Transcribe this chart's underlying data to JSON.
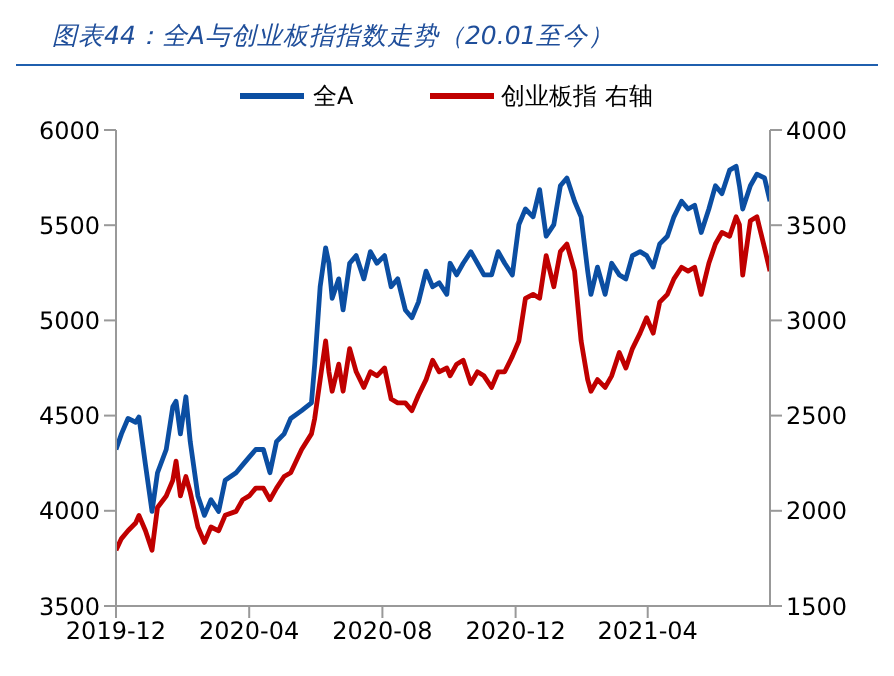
{
  "chart_data": {
    "type": "line",
    "title": "图表44：全A与创业板指指数走势（20.01至今）",
    "legend": "top",
    "line_style": "solid",
    "marker": "none",
    "x": [
      "2019-12-01",
      "2019-12-06",
      "2019-12-12",
      "2019-12-19",
      "2019-12-22",
      "2019-12-28",
      "2020-01-03",
      "2020-01-08",
      "2020-01-16",
      "2020-01-22",
      "2020-01-25",
      "2020-01-29",
      "2020-02-03",
      "2020-02-07",
      "2020-02-14",
      "2020-02-20",
      "2020-02-26",
      "2020-03-04",
      "2020-03-10",
      "2020-03-20",
      "2020-03-26",
      "2020-04-01",
      "2020-04-07",
      "2020-04-14",
      "2020-04-20",
      "2020-04-26",
      "2020-05-03",
      "2020-05-09",
      "2020-05-19",
      "2020-05-28",
      "2020-05-31",
      "2020-06-05",
      "2020-06-10",
      "2020-06-13",
      "2020-06-16",
      "2020-06-22",
      "2020-06-26",
      "2020-07-02",
      "2020-07-08",
      "2020-07-15",
      "2020-07-21",
      "2020-07-27",
      "2020-08-03",
      "2020-08-09",
      "2020-08-15",
      "2020-08-22",
      "2020-08-28",
      "2020-09-03",
      "2020-09-10",
      "2020-09-16",
      "2020-09-22",
      "2020-09-29",
      "2020-10-02",
      "2020-10-08",
      "2020-10-14",
      "2020-10-21",
      "2020-10-27",
      "2020-11-02",
      "2020-11-09",
      "2020-11-15",
      "2020-11-21",
      "2020-11-28",
      "2020-12-04",
      "2020-12-10",
      "2020-12-17",
      "2020-12-23",
      "2020-12-29",
      "2021-01-05",
      "2021-01-11",
      "2021-01-17",
      "2021-01-24",
      "2021-01-30",
      "2021-02-05",
      "2021-02-08",
      "2021-02-14",
      "2021-02-21",
      "2021-02-27",
      "2021-03-06",
      "2021-03-12",
      "2021-03-18",
      "2021-03-25",
      "2021-03-31",
      "2021-04-06",
      "2021-04-12",
      "2021-04-19",
      "2021-04-25",
      "2021-05-02",
      "2021-05-08",
      "2021-05-14",
      "2021-05-20",
      "2021-05-27",
      "2021-06-02",
      "2021-06-08",
      "2021-06-15",
      "2021-06-21",
      "2021-06-24",
      "2021-06-27",
      "2021-07-04",
      "2021-07-10",
      "2021-07-17",
      "2021-07-22"
    ],
    "xlim": [
      "2019-12-01",
      "2021-07-22"
    ],
    "xticks": [
      "2019-12",
      "2020-04",
      "2020-08",
      "2020-12",
      "2021-04"
    ],
    "ylim": [
      3500,
      6000
    ],
    "yticks": [
      3500,
      4000,
      4500,
      5000,
      5500,
      6000
    ],
    "y2lim": [
      1500,
      4000
    ],
    "y2ticks": [
      1500,
      2000,
      2500,
      3000,
      3500,
      4000
    ],
    "series": [
      {
        "name": "全A",
        "color": "#0b4ea2",
        "values": [
          4322,
          4404,
          4485,
          4465,
          4493,
          4241,
          3997,
          4200,
          4322,
          4546,
          4575,
          4404,
          4599,
          4363,
          4078,
          3976,
          4058,
          3997,
          4160,
          4200,
          4241,
          4282,
          4322,
          4322,
          4200,
          4363,
          4404,
          4485,
          4526,
          4567,
          4770,
          5177,
          5381,
          5300,
          5116,
          5218,
          5055,
          5300,
          5340,
          5218,
          5361,
          5300,
          5340,
          5177,
          5218,
          5055,
          5014,
          5096,
          5259,
          5177,
          5198,
          5137,
          5300,
          5239,
          5300,
          5361,
          5300,
          5239,
          5239,
          5361,
          5300,
          5239,
          5503,
          5585,
          5544,
          5687,
          5442,
          5503,
          5707,
          5748,
          5626,
          5544,
          5259,
          5137,
          5280,
          5137,
          5300,
          5239,
          5218,
          5340,
          5361,
          5340,
          5280,
          5402,
          5442,
          5544,
          5626,
          5585,
          5605,
          5462,
          5585,
          5707,
          5666,
          5789,
          5809,
          5707,
          5585,
          5707,
          5768,
          5748,
          5626
        ]
      },
      {
        "name": "创业板指 右轴",
        "color": "#c00000",
        "axis": "y2",
        "values": [
          1793,
          1854,
          1895,
          1936,
          1976,
          1895,
          1793,
          2017,
          2078,
          2160,
          2261,
          2078,
          2180,
          2098,
          1915,
          1834,
          1915,
          1895,
          1976,
          1997,
          2058,
          2078,
          2119,
          2119,
          2058,
          2119,
          2180,
          2200,
          2322,
          2404,
          2485,
          2689,
          2892,
          2730,
          2628,
          2770,
          2628,
          2852,
          2730,
          2648,
          2730,
          2709,
          2750,
          2587,
          2567,
          2567,
          2526,
          2607,
          2689,
          2791,
          2730,
          2750,
          2709,
          2770,
          2791,
          2669,
          2730,
          2709,
          2648,
          2730,
          2730,
          2811,
          2892,
          3116,
          3137,
          3116,
          3340,
          3177,
          3361,
          3401,
          3259,
          2892,
          2689,
          2628,
          2689,
          2648,
          2709,
          2831,
          2750,
          2852,
          2933,
          3014,
          2933,
          3096,
          3137,
          3218,
          3279,
          3259,
          3279,
          3137,
          3300,
          3401,
          3462,
          3442,
          3544,
          3503,
          3238,
          3523,
          3544,
          3381,
          3259
        ]
      }
    ]
  }
}
